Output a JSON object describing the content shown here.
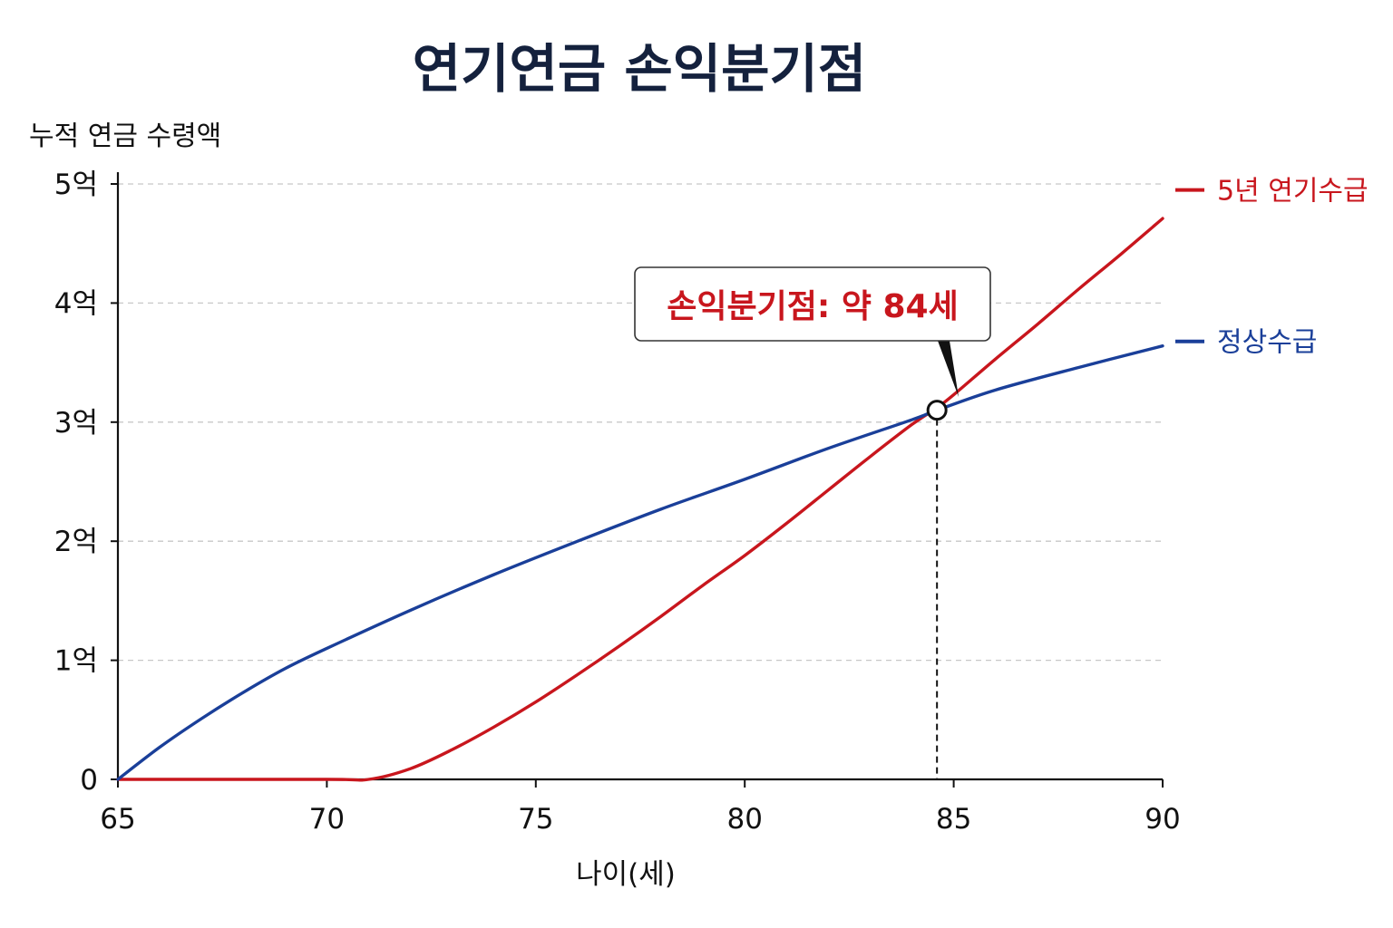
{
  "chart_data": {
    "type": "line",
    "title": "연기연금 손익분기점",
    "xlabel": "나이(세)",
    "ylabel": "누적 연금 수령액",
    "xlim": [
      65,
      90
    ],
    "ylim": [
      0,
      5
    ],
    "x_ticks": [
      65,
      70,
      75,
      80,
      85,
      90
    ],
    "y_ticks": [
      {
        "value": 0,
        "label": "0"
      },
      {
        "value": 1,
        "label": "1억"
      },
      {
        "value": 2,
        "label": "2억"
      },
      {
        "value": 3,
        "label": "3억"
      },
      {
        "value": 4,
        "label": "4억"
      },
      {
        "value": 5,
        "label": "5억"
      }
    ],
    "grid": "horizontal-dashed",
    "legend_placement": "right",
    "series": [
      {
        "name": "5년 연기수급",
        "color": "#c8161d",
        "x": [
          65,
          70,
          71,
          72,
          73,
          74,
          75,
          76,
          77,
          78,
          79,
          80,
          81,
          82,
          83,
          84,
          84.6,
          85,
          86,
          87,
          88,
          89,
          90
        ],
        "y": [
          0,
          0,
          0,
          0.09,
          0.25,
          0.44,
          0.65,
          0.88,
          1.12,
          1.37,
          1.63,
          1.88,
          2.15,
          2.43,
          2.71,
          2.98,
          3.12,
          3.23,
          3.53,
          3.82,
          4.12,
          4.41,
          4.71
        ]
      },
      {
        "name": "정상수급",
        "color": "#1a3f99",
        "x": [
          65,
          66,
          67,
          68,
          69,
          70,
          72,
          74,
          76,
          78,
          80,
          82,
          84,
          84.6,
          86,
          88,
          90
        ],
        "y": [
          0,
          0.27,
          0.51,
          0.73,
          0.93,
          1.1,
          1.42,
          1.72,
          2.0,
          2.27,
          2.52,
          2.78,
          3.02,
          3.1,
          3.27,
          3.46,
          3.64
        ]
      }
    ],
    "annotations": [
      {
        "text": "손익분기점: 약 84세",
        "x": 84.6,
        "y": 3.1
      }
    ]
  }
}
